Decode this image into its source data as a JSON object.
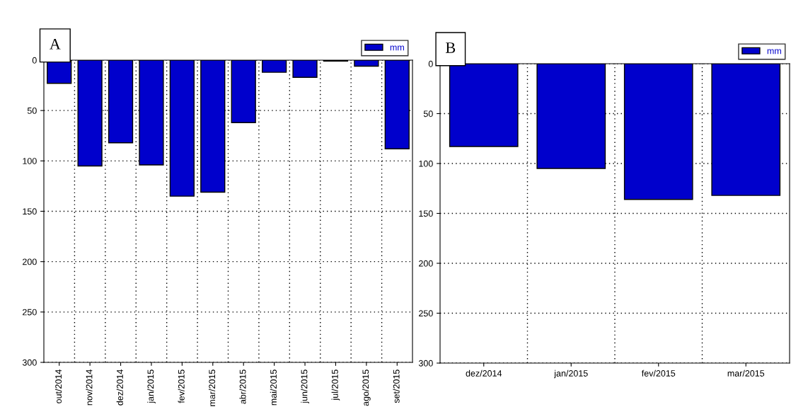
{
  "chart_data": [
    {
      "type": "bar",
      "categories": [
        "out/2014",
        "nov/2014",
        "dez/2014",
        "jan/2015",
        "fev/2015",
        "mar/2015",
        "abr/2015",
        "mai/2015",
        "jun/2015",
        "jul/2015",
        "ago/2015",
        "set/2015"
      ],
      "series": [
        {
          "name": "mm",
          "color": "#0000cc",
          "values": [
            23,
            105,
            82,
            104,
            135,
            131,
            62,
            12,
            17,
            1,
            6,
            88
          ]
        }
      ],
      "ylim": [
        300,
        0
      ],
      "yticks": [
        0,
        50,
        100,
        150,
        200,
        250,
        300
      ],
      "grid": true,
      "legend": "top right",
      "annotations": [
        "A"
      ]
    },
    {
      "type": "bar",
      "categories": [
        "dez/2014",
        "jan/2015",
        "fev/2015",
        "mar/2015"
      ],
      "series": [
        {
          "name": "mm",
          "color": "#0000cc",
          "values": [
            83,
            105,
            136,
            132
          ]
        }
      ],
      "ylim": [
        300,
        0
      ],
      "yticks": [
        0,
        50,
        100,
        150,
        200,
        250,
        300
      ],
      "grid": true,
      "legend": "top right",
      "annotations": [
        "B"
      ]
    }
  ]
}
